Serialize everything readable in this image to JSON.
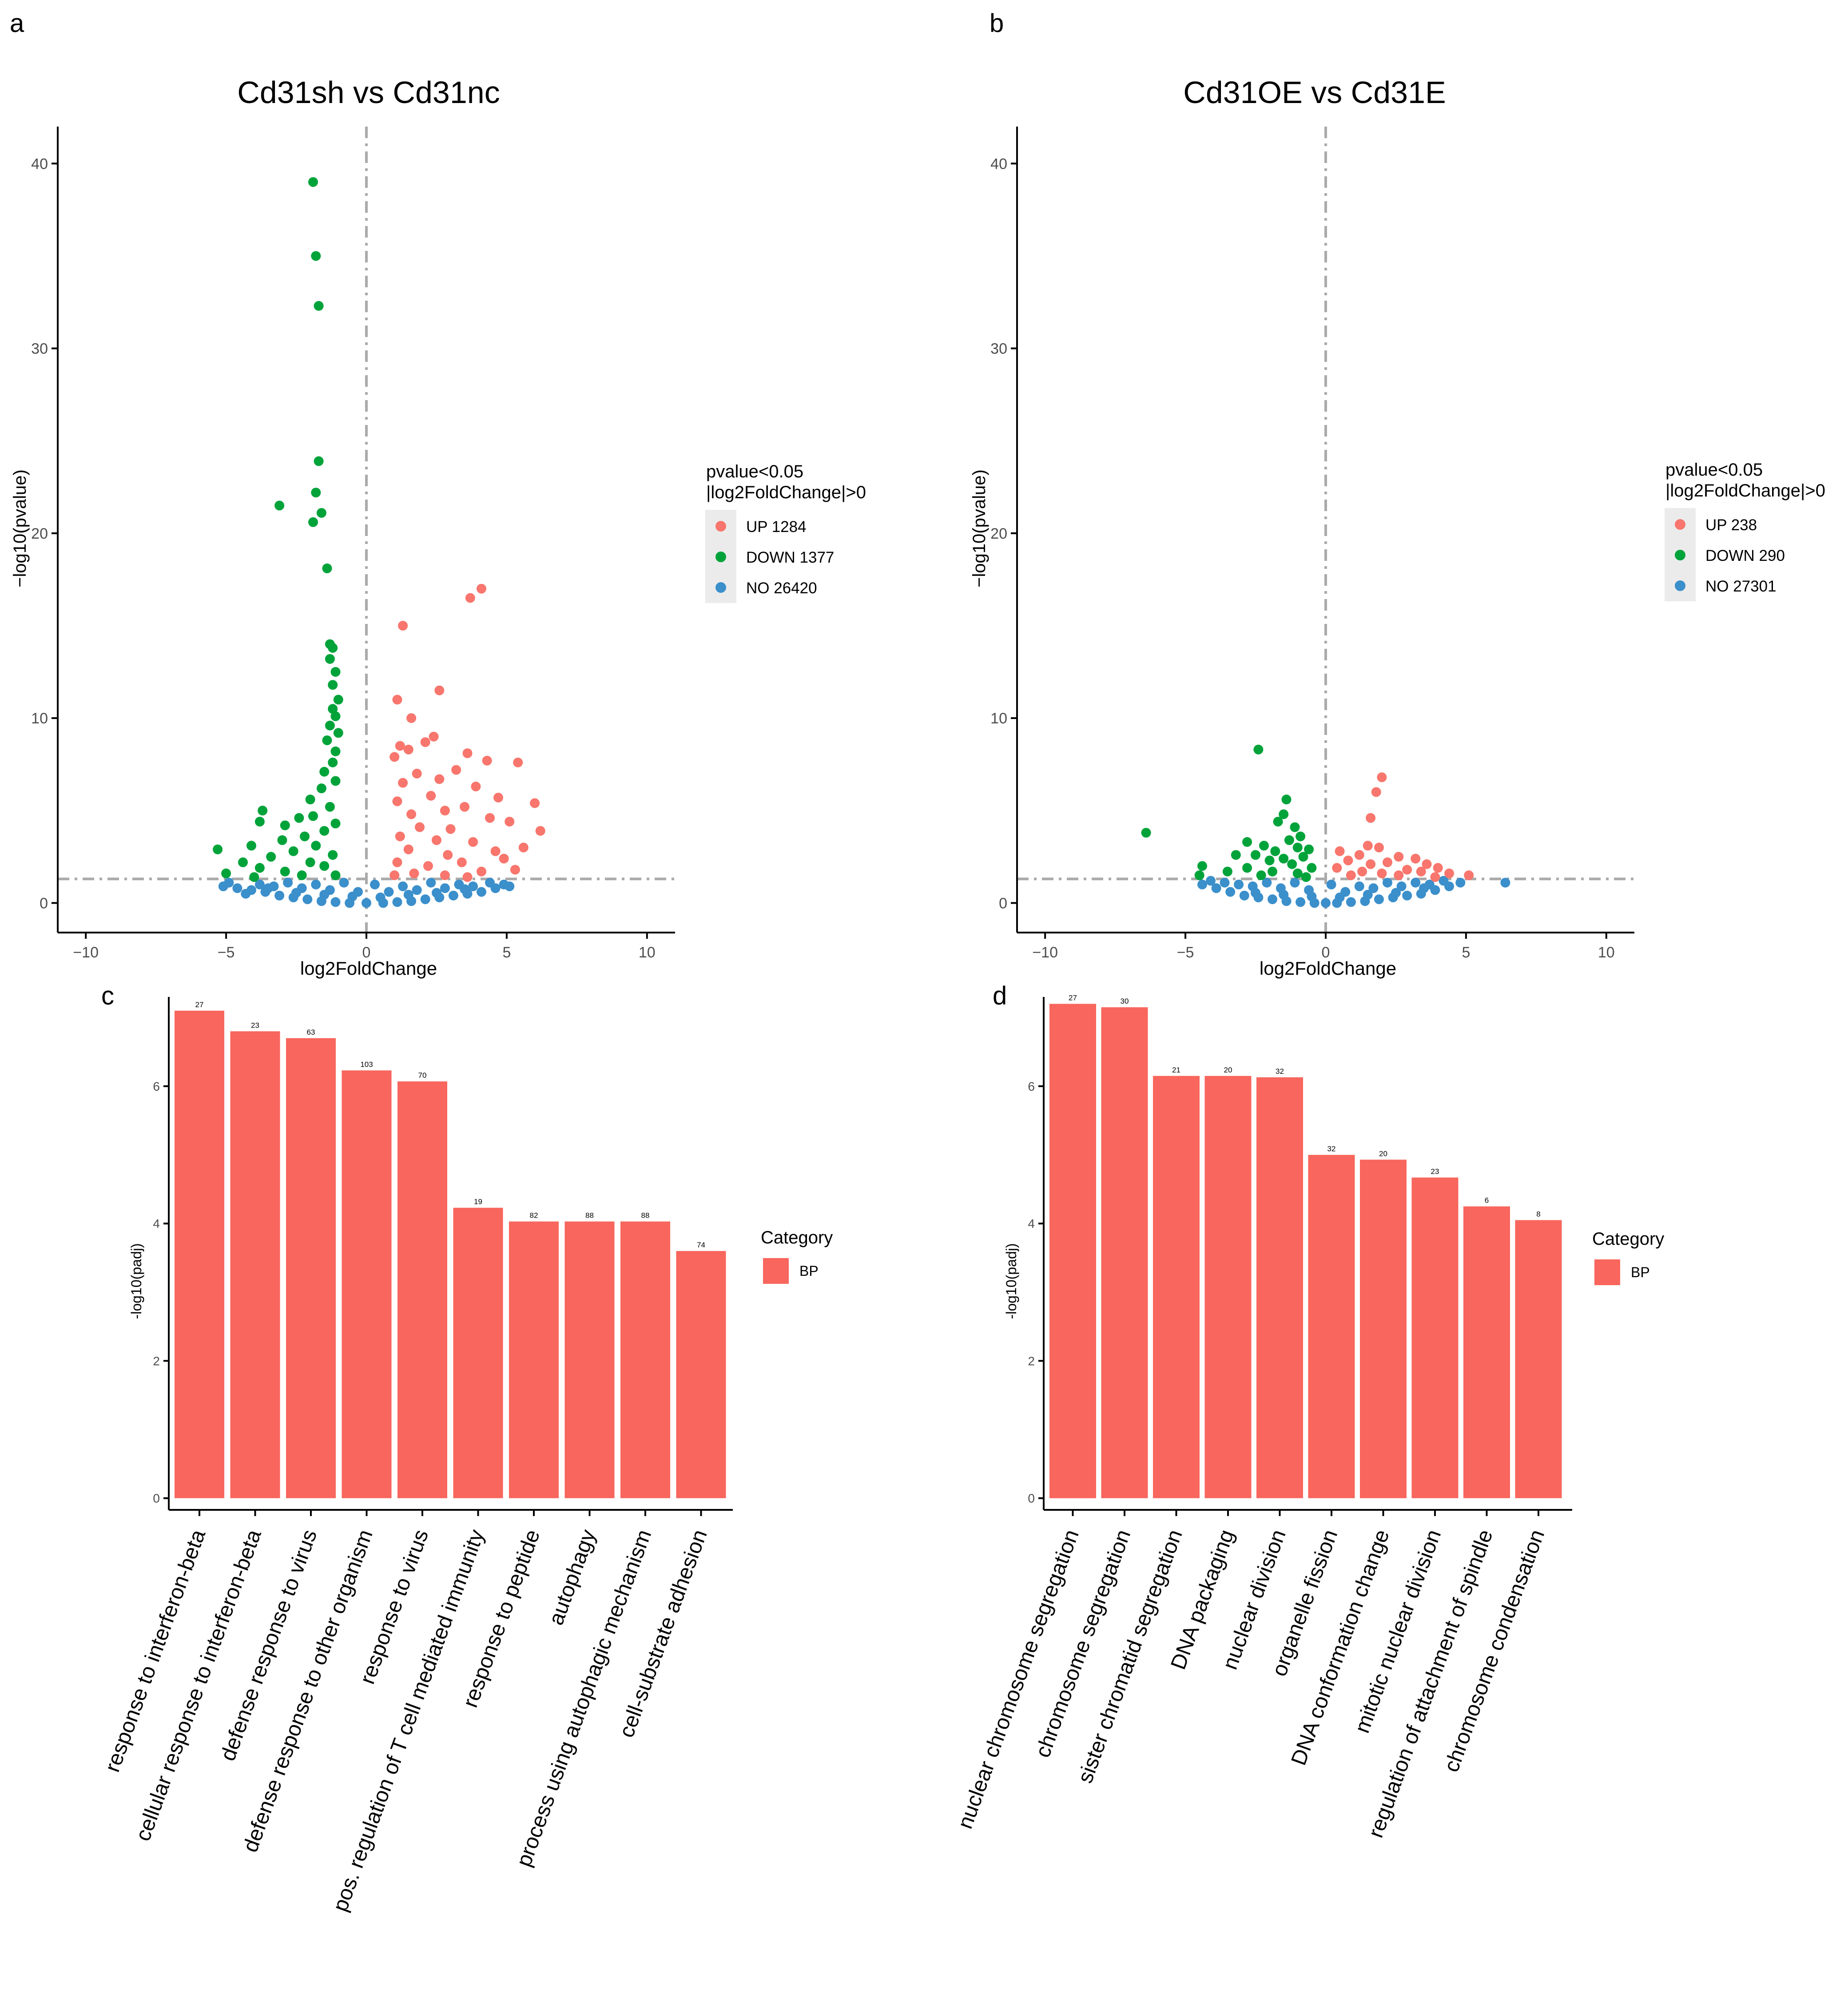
{
  "colors": {
    "up": "#F8766D",
    "down": "#00A33A",
    "no": "#3B8FCB",
    "bar": "#F8665D",
    "guide": "#AAAAAA",
    "axis": "#000000",
    "tick_label": "#4D4D4D",
    "legend_bg": "#EBEBEB"
  },
  "panels": [
    {
      "letter": "a"
    },
    {
      "letter": "b"
    },
    {
      "letter": "c"
    },
    {
      "letter": "d"
    }
  ],
  "chart_data": [
    {
      "type": "scatter",
      "subtype": "volcano",
      "title": "Cd31sh vs Cd31nc",
      "xlabel": "log2FoldChange",
      "ylabel": "−log10(pvalue)",
      "xlim": [
        -11,
        11
      ],
      "ylim": [
        -1.6,
        42
      ],
      "xticks": [
        -10,
        -5,
        0,
        5,
        10
      ],
      "xtick_labels": [
        "−10",
        "−5",
        "0",
        "5",
        "10"
      ],
      "yticks": [
        0,
        10,
        20,
        30,
        40
      ],
      "ytick_labels": [
        "0",
        "10",
        "20",
        "30",
        "40"
      ],
      "threshold_y": 1.3,
      "threshold_x": 0,
      "legend": {
        "title_line1": "pvalue<0.05",
        "title_line2": "|log2FoldChange|>0",
        "entries": [
          {
            "key": "up",
            "label": "UP 1284"
          },
          {
            "key": "down",
            "label": "DOWN 1377"
          },
          {
            "key": "no",
            "label": "NO 26420"
          }
        ]
      },
      "points": {
        "down": [
          [
            -1.9,
            39.0
          ],
          [
            -1.8,
            35.0
          ],
          [
            -1.7,
            32.3
          ],
          [
            -1.7,
            23.9
          ],
          [
            -1.8,
            22.2
          ],
          [
            -3.1,
            21.5
          ],
          [
            -1.6,
            21.1
          ],
          [
            -1.9,
            20.6
          ],
          [
            -1.4,
            18.1
          ],
          [
            -1.3,
            14.0
          ],
          [
            -1.2,
            13.8
          ],
          [
            -1.3,
            13.2
          ],
          [
            -1.1,
            12.5
          ],
          [
            -1.2,
            11.8
          ],
          [
            -1.0,
            11.0
          ],
          [
            -1.2,
            10.5
          ],
          [
            -1.1,
            10.1
          ],
          [
            -1.3,
            9.6
          ],
          [
            -1.0,
            9.2
          ],
          [
            -1.4,
            8.8
          ],
          [
            -1.1,
            8.2
          ],
          [
            -1.2,
            7.6
          ],
          [
            -1.5,
            7.1
          ],
          [
            -1.1,
            6.6
          ],
          [
            -1.6,
            6.2
          ],
          [
            -2.0,
            5.6
          ],
          [
            -1.3,
            5.2
          ],
          [
            -1.9,
            4.7
          ],
          [
            -2.4,
            4.6
          ],
          [
            -1.1,
            4.3
          ],
          [
            -2.9,
            4.2
          ],
          [
            -3.7,
            5.0
          ],
          [
            -3.8,
            4.4
          ],
          [
            -1.5,
            3.9
          ],
          [
            -2.2,
            3.6
          ],
          [
            -3.0,
            3.4
          ],
          [
            -4.1,
            3.1
          ],
          [
            -1.8,
            3.1
          ],
          [
            -5.3,
            2.9
          ],
          [
            -2.6,
            2.8
          ],
          [
            -3.4,
            2.5
          ],
          [
            -1.2,
            2.6
          ],
          [
            -4.4,
            2.2
          ],
          [
            -2.0,
            2.2
          ],
          [
            -3.8,
            1.9
          ],
          [
            -1.5,
            2.0
          ],
          [
            -5.0,
            1.6
          ],
          [
            -2.9,
            1.7
          ],
          [
            -1.1,
            1.5
          ],
          [
            -2.3,
            1.5
          ],
          [
            -4.0,
            1.4
          ]
        ],
        "up": [
          [
            4.1,
            17.0
          ],
          [
            3.7,
            16.5
          ],
          [
            1.3,
            15.0
          ],
          [
            2.6,
            11.5
          ],
          [
            1.1,
            11.0
          ],
          [
            1.6,
            10.0
          ],
          [
            2.4,
            9.0
          ],
          [
            2.1,
            8.7
          ],
          [
            1.2,
            8.5
          ],
          [
            1.5,
            8.3
          ],
          [
            3.6,
            8.1
          ],
          [
            1.0,
            7.9
          ],
          [
            5.4,
            7.6
          ],
          [
            4.3,
            7.7
          ],
          [
            3.2,
            7.2
          ],
          [
            1.8,
            7.0
          ],
          [
            2.6,
            6.7
          ],
          [
            1.3,
            6.5
          ],
          [
            3.9,
            6.3
          ],
          [
            6.0,
            5.4
          ],
          [
            4.7,
            5.7
          ],
          [
            2.3,
            5.8
          ],
          [
            1.1,
            5.5
          ],
          [
            3.5,
            5.2
          ],
          [
            2.8,
            5.0
          ],
          [
            1.6,
            4.8
          ],
          [
            4.4,
            4.6
          ],
          [
            5.1,
            4.4
          ],
          [
            6.2,
            3.9
          ],
          [
            3.0,
            4.0
          ],
          [
            1.9,
            4.1
          ],
          [
            1.2,
            3.6
          ],
          [
            2.5,
            3.4
          ],
          [
            3.8,
            3.3
          ],
          [
            5.6,
            3.0
          ],
          [
            4.6,
            2.8
          ],
          [
            1.5,
            2.9
          ],
          [
            2.9,
            2.6
          ],
          [
            4.9,
            2.4
          ],
          [
            3.4,
            2.2
          ],
          [
            1.1,
            2.2
          ],
          [
            2.2,
            2.0
          ],
          [
            5.3,
            1.8
          ],
          [
            4.1,
            1.7
          ],
          [
            1.7,
            1.6
          ],
          [
            2.8,
            1.5
          ],
          [
            3.6,
            1.4
          ],
          [
            1.0,
            1.5
          ]
        ],
        "no": [
          [
            -5.1,
            0.9
          ],
          [
            -4.6,
            0.8
          ],
          [
            -4.1,
            0.7
          ],
          [
            -3.6,
            0.6
          ],
          [
            -3.1,
            0.4
          ],
          [
            -2.6,
            0.3
          ],
          [
            -2.1,
            0.2
          ],
          [
            -1.6,
            0.1
          ],
          [
            -1.1,
            0.05
          ],
          [
            -0.6,
            0.0
          ],
          [
            0.0,
            0.0
          ],
          [
            0.6,
            0.0
          ],
          [
            1.1,
            0.05
          ],
          [
            1.6,
            0.1
          ],
          [
            2.1,
            0.2
          ],
          [
            2.6,
            0.3
          ],
          [
            3.1,
            0.4
          ],
          [
            3.6,
            0.5
          ],
          [
            4.1,
            0.6
          ],
          [
            4.6,
            0.8
          ],
          [
            5.1,
            0.9
          ],
          [
            -4.9,
            1.1
          ],
          [
            -4.3,
            0.5
          ],
          [
            -3.8,
            1.0
          ],
          [
            -3.3,
            0.9
          ],
          [
            -2.8,
            1.1
          ],
          [
            -2.3,
            0.8
          ],
          [
            -1.8,
            1.0
          ],
          [
            -1.3,
            0.7
          ],
          [
            -0.8,
            1.1
          ],
          [
            -0.3,
            0.6
          ],
          [
            0.3,
            1.0
          ],
          [
            0.8,
            0.6
          ],
          [
            1.3,
            0.9
          ],
          [
            1.8,
            0.7
          ],
          [
            2.3,
            1.1
          ],
          [
            2.8,
            0.8
          ],
          [
            3.3,
            1.0
          ],
          [
            3.8,
            0.9
          ],
          [
            4.4,
            1.1
          ],
          [
            4.9,
            1.0
          ],
          [
            -2.5,
            0.55
          ],
          [
            -1.5,
            0.45
          ],
          [
            -0.5,
            0.35
          ],
          [
            0.5,
            0.3
          ],
          [
            1.5,
            0.45
          ],
          [
            2.5,
            0.55
          ],
          [
            3.5,
            0.75
          ],
          [
            -3.5,
            0.8
          ]
        ]
      }
    },
    {
      "type": "scatter",
      "subtype": "volcano",
      "title": "Cd31OE vs Cd31E",
      "xlabel": "log2FoldChange",
      "ylabel": "−log10(pvalue)",
      "xlim": [
        -11,
        11
      ],
      "ylim": [
        -1.6,
        42
      ],
      "xticks": [
        -10,
        -5,
        0,
        5,
        10
      ],
      "xtick_labels": [
        "−10",
        "−5",
        "0",
        "5",
        "10"
      ],
      "yticks": [
        0,
        10,
        20,
        30,
        40
      ],
      "ytick_labels": [
        "0",
        "10",
        "20",
        "30",
        "40"
      ],
      "threshold_y": 1.3,
      "threshold_x": 0,
      "legend": {
        "title_line1": "pvalue<0.05",
        "title_line2": "|log2FoldChange|>0",
        "entries": [
          {
            "key": "up",
            "label": "UP 238"
          },
          {
            "key": "down",
            "label": "DOWN 290"
          },
          {
            "key": "no",
            "label": "NO 27301"
          }
        ]
      },
      "points": {
        "down": [
          [
            -2.4,
            8.3
          ],
          [
            -1.4,
            5.6
          ],
          [
            -6.4,
            3.8
          ],
          [
            -1.7,
            4.4
          ],
          [
            -1.5,
            4.8
          ],
          [
            -1.1,
            4.1
          ],
          [
            -0.9,
            3.6
          ],
          [
            -1.3,
            3.4
          ],
          [
            -2.8,
            3.3
          ],
          [
            -2.2,
            3.1
          ],
          [
            -1.0,
            3.0
          ],
          [
            -0.6,
            2.9
          ],
          [
            -1.8,
            2.8
          ],
          [
            -3.2,
            2.6
          ],
          [
            -2.5,
            2.6
          ],
          [
            -0.8,
            2.5
          ],
          [
            -1.5,
            2.4
          ],
          [
            -2.0,
            2.3
          ],
          [
            -4.4,
            2.0
          ],
          [
            -1.2,
            2.1
          ],
          [
            -2.8,
            1.9
          ],
          [
            -0.5,
            1.9
          ],
          [
            -3.5,
            1.7
          ],
          [
            -1.9,
            1.7
          ],
          [
            -4.5,
            1.5
          ],
          [
            -2.3,
            1.5
          ],
          [
            -1.0,
            1.6
          ],
          [
            -0.7,
            1.4
          ]
        ],
        "up": [
          [
            2.0,
            6.8
          ],
          [
            1.8,
            6.0
          ],
          [
            1.6,
            4.6
          ],
          [
            1.5,
            3.1
          ],
          [
            1.9,
            3.0
          ],
          [
            0.5,
            2.8
          ],
          [
            1.2,
            2.6
          ],
          [
            2.6,
            2.5
          ],
          [
            3.2,
            2.4
          ],
          [
            0.8,
            2.3
          ],
          [
            2.2,
            2.2
          ],
          [
            3.6,
            2.1
          ],
          [
            1.6,
            2.1
          ],
          [
            4.0,
            1.9
          ],
          [
            0.4,
            1.9
          ],
          [
            2.9,
            1.8
          ],
          [
            1.3,
            1.7
          ],
          [
            3.4,
            1.7
          ],
          [
            4.4,
            1.6
          ],
          [
            5.1,
            1.5
          ],
          [
            2.0,
            1.6
          ],
          [
            0.9,
            1.5
          ],
          [
            2.6,
            1.5
          ],
          [
            3.9,
            1.4
          ]
        ],
        "no": [
          [
            6.4,
            1.1
          ],
          [
            -4.4,
            1.0
          ],
          [
            -3.9,
            0.8
          ],
          [
            -3.4,
            0.6
          ],
          [
            -2.9,
            0.4
          ],
          [
            -2.4,
            0.3
          ],
          [
            -1.9,
            0.2
          ],
          [
            -1.4,
            0.1
          ],
          [
            -0.9,
            0.05
          ],
          [
            -0.4,
            0.0
          ],
          [
            0.0,
            0.0
          ],
          [
            0.4,
            0.0
          ],
          [
            0.9,
            0.05
          ],
          [
            1.4,
            0.1
          ],
          [
            1.9,
            0.2
          ],
          [
            2.4,
            0.3
          ],
          [
            2.9,
            0.4
          ],
          [
            3.4,
            0.5
          ],
          [
            3.9,
            0.7
          ],
          [
            4.4,
            0.9
          ],
          [
            4.8,
            1.1
          ],
          [
            -4.1,
            1.2
          ],
          [
            -3.6,
            1.1
          ],
          [
            -3.1,
            1.0
          ],
          [
            -2.6,
            0.9
          ],
          [
            -2.1,
            1.1
          ],
          [
            -1.6,
            0.8
          ],
          [
            -1.1,
            1.1
          ],
          [
            -0.6,
            0.7
          ],
          [
            0.2,
            1.0
          ],
          [
            0.7,
            0.6
          ],
          [
            1.2,
            0.9
          ],
          [
            1.7,
            0.8
          ],
          [
            2.2,
            1.1
          ],
          [
            2.7,
            0.9
          ],
          [
            3.2,
            1.1
          ],
          [
            3.7,
            1.0
          ],
          [
            4.2,
            1.2
          ],
          [
            -2.5,
            0.55
          ],
          [
            -1.5,
            0.45
          ],
          [
            -0.5,
            0.35
          ],
          [
            0.5,
            0.3
          ],
          [
            1.5,
            0.45
          ],
          [
            2.5,
            0.55
          ],
          [
            3.5,
            0.8
          ]
        ]
      }
    },
    {
      "type": "bar",
      "title": "",
      "xlabel": "",
      "ylabel": "-log10(padj)",
      "ylim": [
        -0.17,
        7.3
      ],
      "yticks": [
        0,
        2,
        4,
        6
      ],
      "ytick_labels": [
        "0",
        "2",
        "4",
        "6"
      ],
      "categories": [
        "response to interferon-beta",
        "cellular response to interferon-beta",
        "defense response to virus",
        "defense response to other organism",
        "response to virus",
        "pos. regulation of T cell mediated immunity",
        "response to peptide",
        "autophagy",
        "process using autophagic mechanism",
        "cell-substrate adhesion"
      ],
      "values": [
        7.1,
        6.8,
        6.7,
        6.23,
        6.07,
        4.23,
        4.03,
        4.03,
        4.03,
        3.6
      ],
      "data_labels": [
        "27",
        "23",
        "63",
        "103",
        "70",
        "19",
        "82",
        "88",
        "88",
        "74"
      ],
      "legend": {
        "title": "Category",
        "entries": [
          {
            "label": "BP"
          }
        ]
      }
    },
    {
      "type": "bar",
      "title": "",
      "xlabel": "",
      "ylabel": "-log10(padj)",
      "ylim": [
        -0.17,
        7.3
      ],
      "yticks": [
        0,
        2,
        4,
        6
      ],
      "ytick_labels": [
        "0",
        "2",
        "4",
        "6"
      ],
      "categories": [
        "nuclear chromosome segregation",
        "chromosome segregation",
        "sister chromatid segregation",
        "DNA packaging",
        "nuclear division",
        "organelle fission",
        "DNA conformation change",
        "mitotic nuclear division",
        "regulation of attachment of spindle",
        "chromosome condensation"
      ],
      "values": [
        7.2,
        7.15,
        6.15,
        6.15,
        6.13,
        5.0,
        4.93,
        4.67,
        4.25,
        4.05
      ],
      "data_labels": [
        "27",
        "30",
        "21",
        "20",
        "32",
        "32",
        "20",
        "23",
        "6",
        "8"
      ],
      "legend": {
        "title": "Category",
        "entries": [
          {
            "label": "BP"
          }
        ]
      }
    }
  ]
}
